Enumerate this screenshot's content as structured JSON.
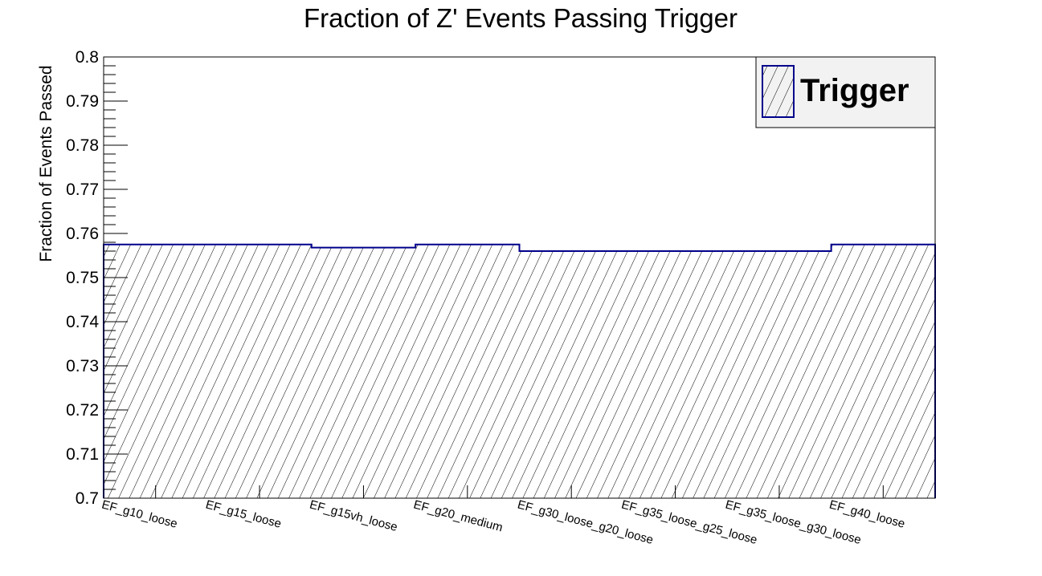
{
  "chart_data": {
    "type": "bar",
    "title": "Fraction of Z' Events Passing Trigger",
    "xlabel": "",
    "ylabel": "Fraction of Events Passed",
    "ylim": [
      0.7,
      0.8
    ],
    "yticks": [
      "0.7",
      "0.71",
      "0.72",
      "0.73",
      "0.74",
      "0.75",
      "0.76",
      "0.77",
      "0.78",
      "0.79",
      "0.8"
    ],
    "categories": [
      "EF_g10_loose",
      "EF_g15_loose",
      "EF_g15vh_loose",
      "EF_g20_medium",
      "EF_g30_loose_g20_loose",
      "EF_g35_loose_g25_loose",
      "EF_g35_loose_g30_loose",
      "EF_g40_loose"
    ],
    "series": [
      {
        "name": "Trigger",
        "values": [
          0.7575,
          0.7575,
          0.7568,
          0.7575,
          0.756,
          0.756,
          0.756,
          0.7575
        ]
      }
    ],
    "legend": {
      "position": "top-right",
      "entries": [
        "Trigger"
      ]
    },
    "grid": false,
    "colors": {
      "line": "#00008b",
      "hatch": "#000000",
      "legend_bg": "#f2f2f2"
    }
  }
}
